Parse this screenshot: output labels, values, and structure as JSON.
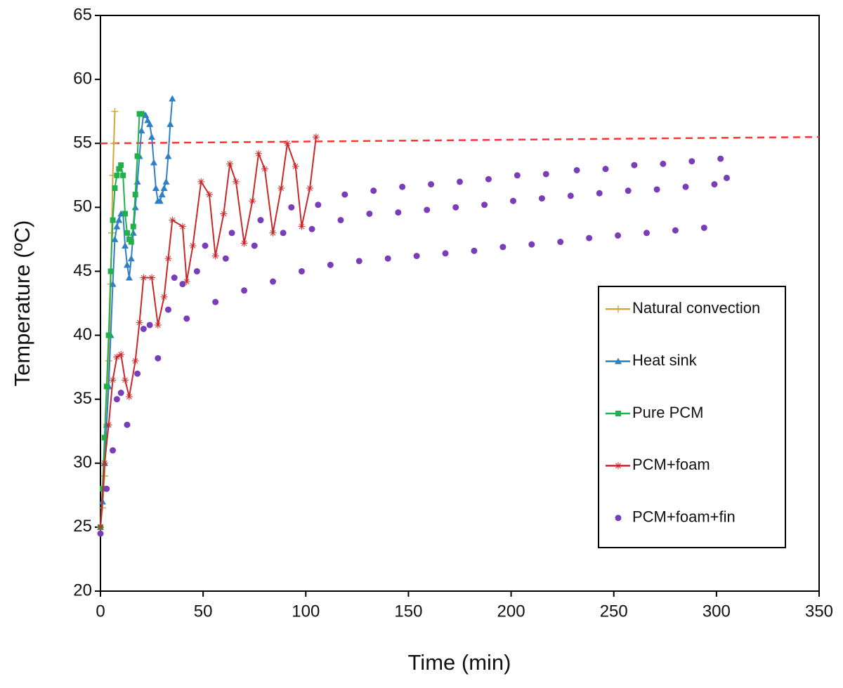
{
  "chart_data": {
    "type": "line",
    "xlabel": "Time (min)",
    "ylabel": "Temperature (ºC)",
    "xlim": [
      0,
      350
    ],
    "xticks": [
      0,
      50,
      100,
      150,
      200,
      250,
      300,
      350
    ],
    "ylim": [
      20,
      65
    ],
    "yticks": [
      20,
      25,
      30,
      35,
      40,
      45,
      50,
      55,
      60,
      65
    ],
    "grid": false,
    "legend": "right",
    "reference_line": {
      "x": [
        0,
        350
      ],
      "values": [
        55,
        55.5
      ],
      "color": "#ff3333",
      "dashed": true
    },
    "series": [
      {
        "name": "Natural convection",
        "color": "#d4a73a",
        "marker": "plus",
        "line": true,
        "x": [
          0,
          1,
          2,
          3,
          4,
          5,
          5.5,
          6,
          6.5,
          7
        ],
        "values": [
          25,
          26.5,
          29,
          33,
          38,
          44,
          48,
          52.5,
          55,
          57.5
        ]
      },
      {
        "name": "Heat sink",
        "color": "#2f7fc8",
        "marker": "triangle",
        "line": true,
        "x": [
          0,
          1,
          2,
          3,
          4,
          5,
          6,
          7,
          8,
          9,
          10,
          11,
          12,
          13,
          14,
          15,
          16,
          17,
          18,
          19,
          20,
          21,
          22,
          23,
          24,
          25,
          26,
          27,
          28,
          29,
          30,
          31,
          32,
          33,
          34,
          35
        ],
        "values": [
          25,
          27,
          30,
          33,
          36,
          40,
          44,
          47.5,
          48.5,
          49,
          49.5,
          49.5,
          47,
          45.5,
          44.5,
          46,
          48,
          50,
          52,
          54,
          56,
          57.3,
          57.2,
          56.8,
          56.5,
          55.5,
          53.5,
          51.5,
          50.5,
          50.5,
          51,
          51.5,
          52,
          54,
          56.5,
          58.5
        ]
      },
      {
        "name": "Pure PCM",
        "color": "#22b04b",
        "marker": "square",
        "line": true,
        "x": [
          0,
          1,
          2,
          3,
          4,
          5,
          6,
          7,
          8,
          9,
          10,
          11,
          12,
          13,
          14,
          15,
          16,
          17,
          18,
          19,
          20
        ],
        "values": [
          25,
          28,
          32,
          36,
          40,
          45,
          49,
          51.5,
          52.5,
          53,
          53.3,
          52.5,
          49.5,
          48,
          47.5,
          47.3,
          48.5,
          51,
          54,
          57.3,
          57.3
        ]
      },
      {
        "name": "PCM+foam",
        "color": "#c8282a",
        "marker": "star",
        "line": true,
        "x": [
          0,
          2,
          4,
          6,
          8,
          10,
          12,
          14,
          17,
          19,
          21,
          25,
          28,
          31,
          33,
          35,
          40,
          42,
          45,
          49,
          53,
          56,
          60,
          63,
          66,
          70,
          74,
          77,
          80,
          84,
          88,
          91,
          95,
          98,
          102,
          105
        ],
        "values": [
          25,
          30,
          33,
          36.5,
          38.3,
          38.5,
          36.5,
          35.2,
          38,
          41,
          44.5,
          44.5,
          40.8,
          43,
          46,
          49,
          48.5,
          44.2,
          47,
          52,
          51,
          46.2,
          49.5,
          53.4,
          52,
          47.2,
          50.5,
          54.2,
          53,
          48,
          51.5,
          55,
          53.2,
          48.5,
          51.5,
          55.5
        ]
      },
      {
        "name": "PCM+foam+fin",
        "color": "#7a3db8",
        "marker": "circle",
        "line": false,
        "x": [
          0,
          3,
          6,
          8,
          10,
          13,
          18,
          21,
          24,
          28,
          33,
          36,
          40,
          42,
          47,
          51,
          56,
          61,
          64,
          70,
          75,
          78,
          84,
          89,
          93,
          98,
          103,
          106,
          112,
          117,
          119,
          126,
          131,
          133,
          140,
          145,
          147,
          154,
          159,
          161,
          168,
          173,
          175,
          182,
          187,
          189,
          196,
          201,
          203,
          210,
          215,
          217,
          224,
          229,
          232,
          238,
          243,
          246,
          252,
          257,
          260,
          266,
          271,
          274,
          280,
          285,
          288,
          294,
          299,
          302,
          305
        ],
        "values": [
          24.5,
          28,
          31,
          35,
          35.5,
          33,
          37,
          40.5,
          40.8,
          38.2,
          42,
          44.5,
          44,
          41.3,
          45,
          47,
          42.6,
          46,
          48,
          43.5,
          47,
          49,
          44.2,
          48,
          50,
          45,
          48.3,
          50.2,
          45.5,
          49,
          51,
          45.8,
          49.5,
          51.3,
          46,
          49.6,
          51.6,
          46.2,
          49.8,
          51.8,
          46.4,
          50,
          52,
          46.6,
          50.2,
          52.2,
          46.9,
          50.5,
          52.5,
          47.1,
          50.7,
          52.6,
          47.3,
          50.9,
          52.9,
          47.6,
          51.1,
          53,
          47.8,
          51.3,
          53.3,
          48,
          51.4,
          53.4,
          48.2,
          51.6,
          53.6,
          48.4,
          51.8,
          53.8,
          52.3
        ]
      }
    ]
  }
}
